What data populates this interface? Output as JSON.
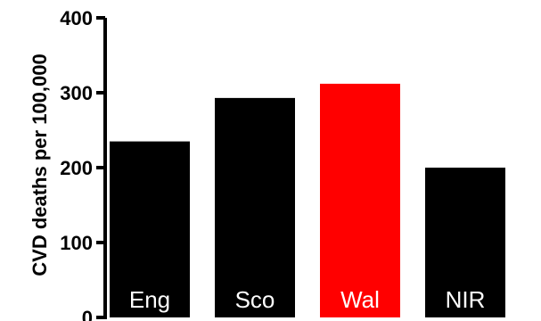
{
  "chart_data": {
    "type": "bar",
    "title": "",
    "xlabel": "",
    "ylabel": "CVD deaths per 100,000",
    "ylim": [
      0,
      400
    ],
    "y_ticks": [
      0,
      100,
      200,
      300,
      400
    ],
    "categories": [
      "Eng",
      "Sco",
      "Wal",
      "NIR"
    ],
    "values": [
      235,
      293,
      312,
      200
    ],
    "colors": [
      "#000000",
      "#000000",
      "#ff0000",
      "#000000"
    ],
    "grid": false,
    "legend": "none"
  }
}
